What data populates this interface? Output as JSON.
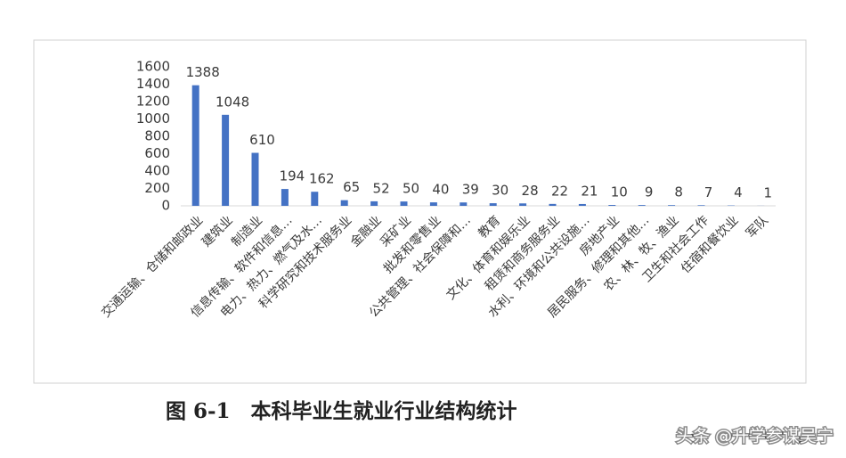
{
  "chart_data": {
    "type": "bar",
    "categories": [
      "交通运输、仓储和邮政业",
      "建筑业",
      "制造业",
      "信息传输、软件和信息…",
      "电力、热力、燃气及水…",
      "科学研究和技术服务业",
      "金融业",
      "采矿业",
      "批发和零售业",
      "公共管理、社会保障和…",
      "教育",
      "文化、体育和娱乐业",
      "租赁和商务服务业",
      "水利、环境和公共设施…",
      "房地产业",
      "居民服务、修理和其他…",
      "农、林、牧、渔业",
      "卫生和社会工作",
      "住宿和餐饮业",
      "军队"
    ],
    "values": [
      1388,
      1048,
      610,
      194,
      162,
      65,
      52,
      50,
      40,
      39,
      30,
      28,
      22,
      21,
      10,
      9,
      8,
      7,
      4,
      1
    ],
    "color": "#4472c4",
    "ylim": [
      0,
      1600
    ],
    "yticks": [
      0,
      200,
      400,
      600,
      800,
      1000,
      1200,
      1400,
      1600
    ],
    "grid": false
  },
  "caption": "图 6-1　本科毕业生就业行业结构统计",
  "watermark": "头条 @升学参谋吴宁"
}
